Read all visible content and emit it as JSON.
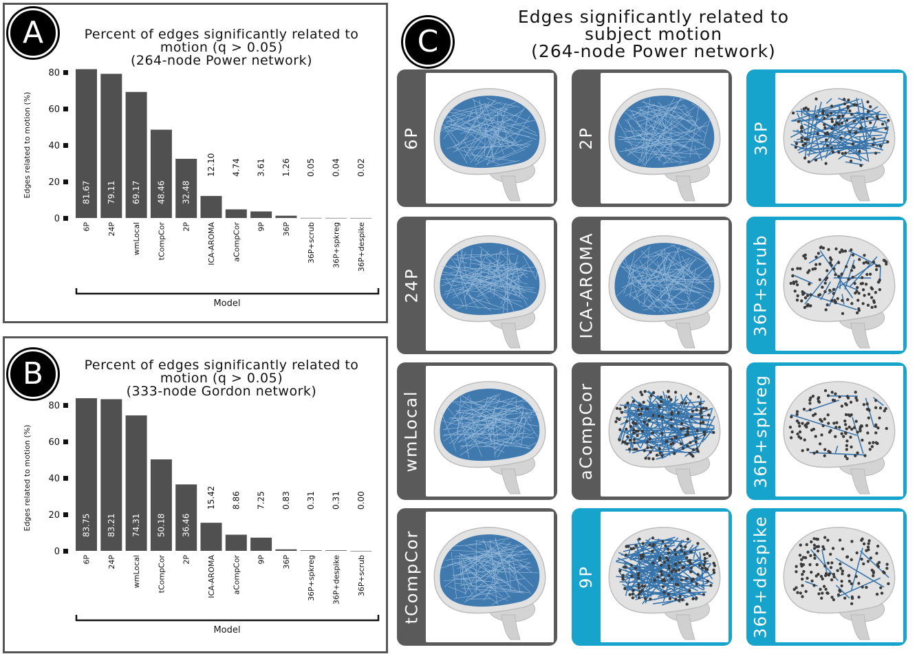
{
  "colors": {
    "bar": "#505050",
    "gray_tile": "#5a5a5a",
    "blue_tile": "#16a3cc",
    "edge_blue": "#2d6ea8",
    "panel_border": "#555555"
  },
  "panel_a": {
    "badge": "A",
    "title_lines": [
      "Percent of edges significantly related to",
      "motion (q > 0.05)",
      "(264-node Power network)"
    ]
  },
  "panel_b": {
    "badge": "B",
    "title_lines": [
      "Percent of edges significantly related to",
      "motion (q > 0.05)",
      "(333-node Gordon network)"
    ]
  },
  "panel_c": {
    "badge": "C",
    "title_lines": [
      "Edges significantly related to",
      "subject motion",
      "(264-node Power network)"
    ],
    "tiles": [
      {
        "label": "6P",
        "style": "gray",
        "density": "dense"
      },
      {
        "label": "2P",
        "style": "gray",
        "density": "dense"
      },
      {
        "label": "36P",
        "style": "blue",
        "density": "medium"
      },
      {
        "label": "24P",
        "style": "gray",
        "density": "dense"
      },
      {
        "label": "ICA-AROMA",
        "style": "gray",
        "density": "dense"
      },
      {
        "label": "36P+scrub",
        "style": "blue",
        "density": "sparse"
      },
      {
        "label": "wmLocal",
        "style": "gray",
        "density": "dense"
      },
      {
        "label": "aCompCor",
        "style": "gray",
        "density": "medium-dense"
      },
      {
        "label": "36P+spkreg",
        "style": "blue",
        "density": "very-sparse"
      },
      {
        "label": "tCompCor",
        "style": "gray",
        "density": "dense"
      },
      {
        "label": "9P",
        "style": "blue",
        "density": "medium-dense"
      },
      {
        "label": "36P+despike",
        "style": "blue",
        "density": "very-sparse"
      }
    ]
  },
  "chart_data": [
    {
      "type": "bar",
      "title": "Percent of edges significantly related to motion (q > 0.05) (264-node Power network)",
      "xlabel": "Model",
      "ylabel": "Edges related to motion (%)",
      "ylim": [
        0,
        80
      ],
      "yticks": [
        0,
        20,
        40,
        60,
        80
      ],
      "categories": [
        "6P",
        "24P",
        "wmLocal",
        "tCompCor",
        "2P",
        "ICA-AROMA",
        "aCompCor",
        "9P",
        "36P",
        "36P+scrub",
        "36P+spkreg",
        "36P+despike"
      ],
      "values": [
        81.67,
        79.11,
        69.17,
        48.46,
        32.48,
        12.1,
        4.74,
        3.61,
        1.26,
        0.05,
        0.04,
        0.02
      ],
      "value_labels": [
        "81.67",
        "79.11",
        "69.17",
        "48.46",
        "32.48",
        "12.10",
        "4.74",
        "3.61",
        "1.26",
        "0.05",
        "0.04",
        "0.02"
      ]
    },
    {
      "type": "bar",
      "title": "Percent of edges significantly related to motion (q > 0.05) (333-node Gordon network)",
      "xlabel": "Model",
      "ylabel": "Edges related to motion (%)",
      "ylim": [
        0,
        80
      ],
      "yticks": [
        0,
        20,
        40,
        60,
        80
      ],
      "categories": [
        "6P",
        "24P",
        "wmLocal",
        "tCompCor",
        "2P",
        "ICA-AROMA",
        "aCompCor",
        "9P",
        "36P",
        "36P+spkreg",
        "36P+despike",
        "36P+scrub"
      ],
      "values": [
        83.75,
        83.21,
        74.31,
        50.18,
        36.46,
        15.42,
        8.86,
        7.25,
        0.83,
        0.31,
        0.31,
        0.0
      ],
      "value_labels": [
        "83.75",
        "83.21",
        "74.31",
        "50.18",
        "36.46",
        "15.42",
        "8.86",
        "7.25",
        "0.83",
        "0.31",
        "0.31",
        "0.00"
      ]
    }
  ]
}
